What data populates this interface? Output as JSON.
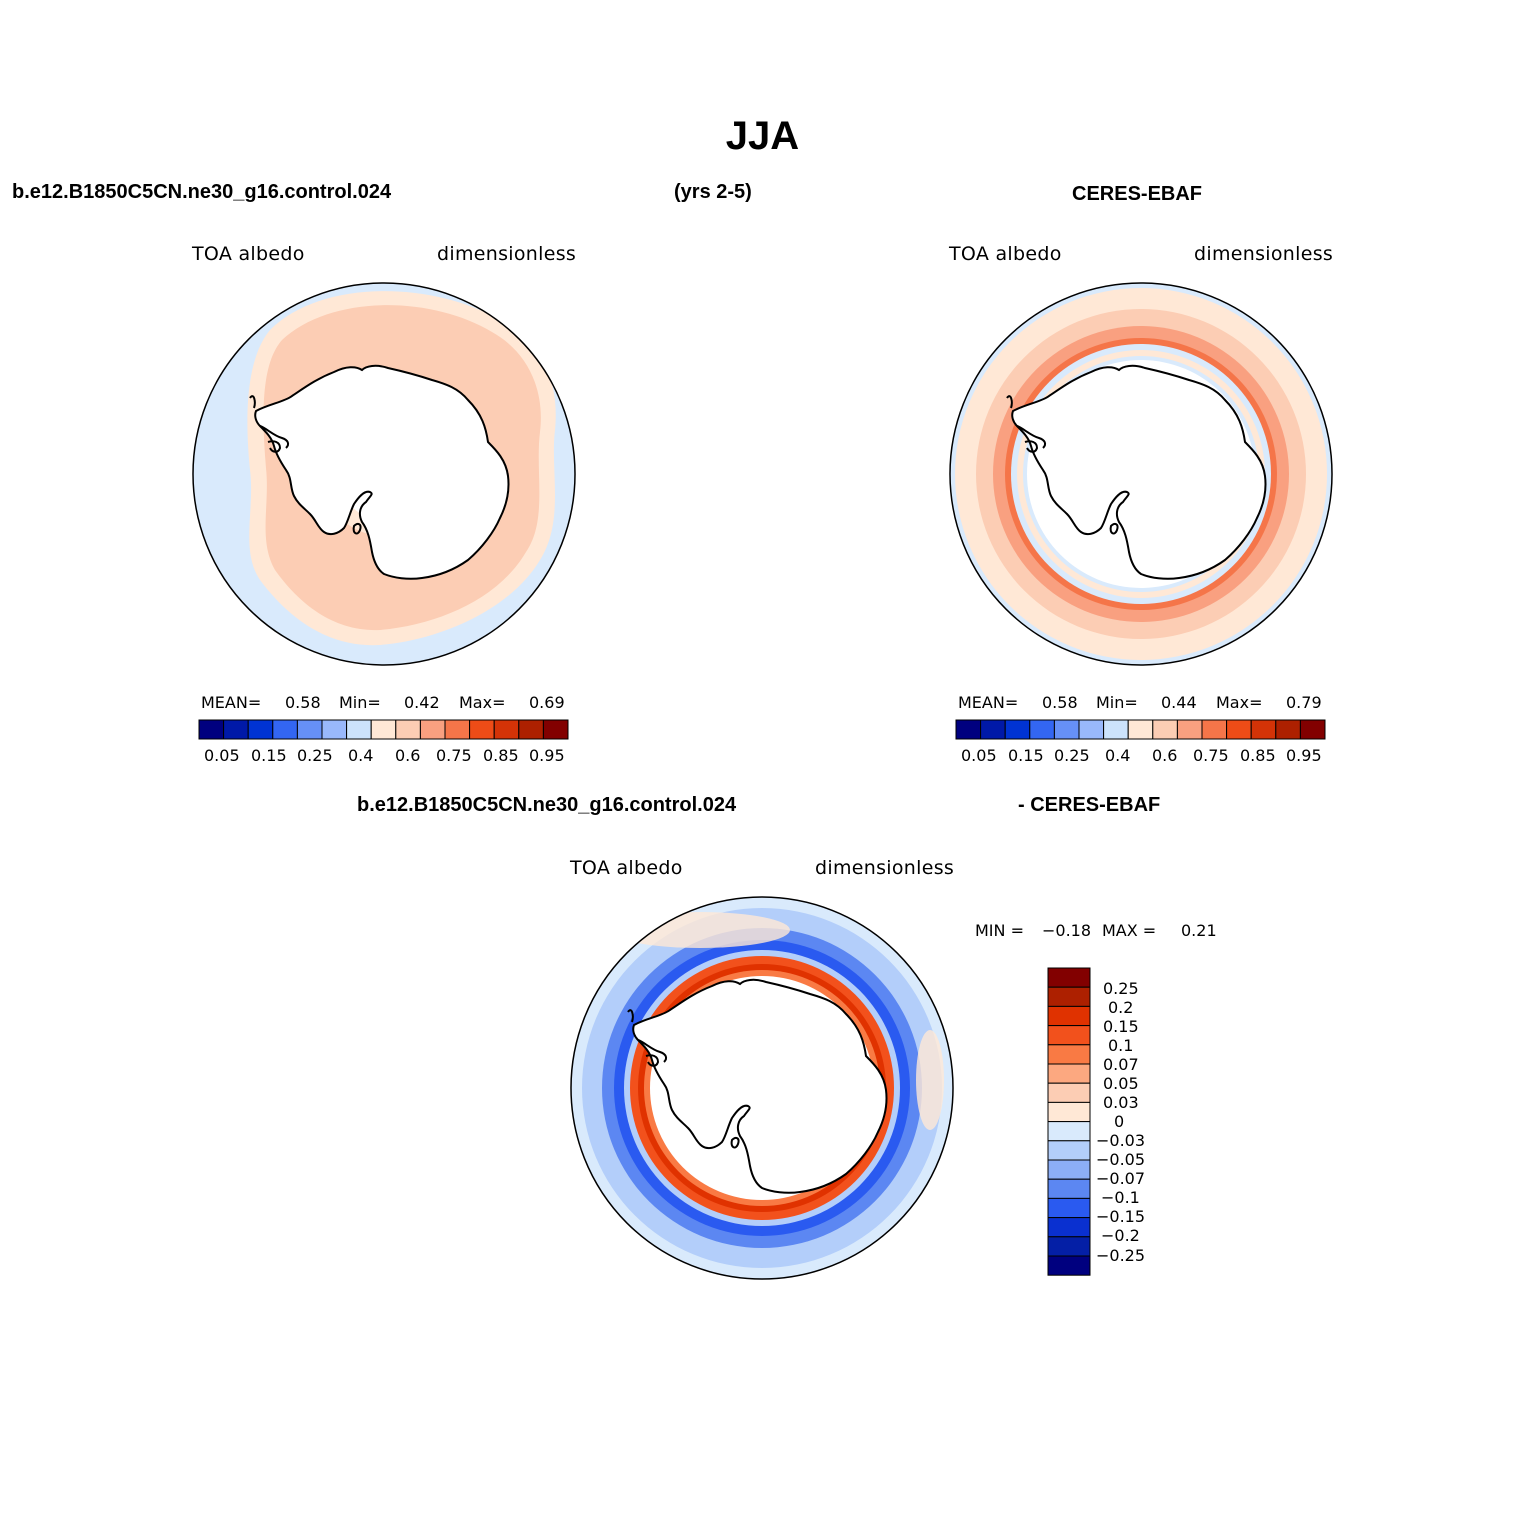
{
  "title": "JJA",
  "headers": {
    "model_case": "b.e12.B1850C5CN.ne30_g16.control.024",
    "years": "(yrs 2-5)",
    "obs_name": "CERES-EBAF",
    "diff_model": "b.e12.B1850C5CN.ne30_g16.control.024",
    "diff_obs": "- CERES-EBAF"
  },
  "panels": [
    {
      "id": "model",
      "variable": "TOA albedo",
      "units": "dimensionless",
      "mean_label": "MEAN=",
      "mean": "0.58",
      "min_label": "Min=",
      "min": "0.42",
      "max_label": "Max=",
      "max": "0.69"
    },
    {
      "id": "obs",
      "variable": "TOA albedo",
      "units": "dimensionless",
      "mean_label": "MEAN=",
      "mean": "0.58",
      "min_label": "Min=",
      "min": "0.44",
      "max_label": "Max=",
      "max": "0.79"
    },
    {
      "id": "diff",
      "variable": "TOA albedo",
      "units": "dimensionless",
      "min_label": "MIN =",
      "min": "−0.18",
      "max_label": "MAX =",
      "max": "0.21"
    }
  ],
  "colorbar_main": {
    "colors": [
      "#00007f",
      "#0019a8",
      "#0033d3",
      "#3366f2",
      "#6690f7",
      "#99b8fb",
      "#cce3fc",
      "#ffe8d6",
      "#fccdb4",
      "#f9a080",
      "#f57549",
      "#ee4c17",
      "#d43307",
      "#ad2000",
      "#820000"
    ],
    "tick_labels": [
      "0.05",
      "0.15",
      "0.25",
      "0.4",
      "0.6",
      "0.75",
      "0.85",
      "0.95"
    ]
  },
  "colorbar_diff": {
    "colors_top_to_bottom": [
      "#820000",
      "#ad2000",
      "#e03200",
      "#f2511c",
      "#f97a44",
      "#fca880",
      "#fccdb4",
      "#ffe8d6",
      "#d9eafc",
      "#b3cefa",
      "#8caef6",
      "#5c87f2",
      "#2a5af0",
      "#0a30d0",
      "#041fa6",
      "#00007f"
    ],
    "tick_labels": [
      "0.25",
      "0.2",
      "0.15",
      "0.1",
      "0.07",
      "0.05",
      "0.03",
      "0",
      "−0.03",
      "−0.05",
      "−0.07",
      "−0.1",
      "−0.15",
      "−0.2",
      "−0.25"
    ]
  }
}
